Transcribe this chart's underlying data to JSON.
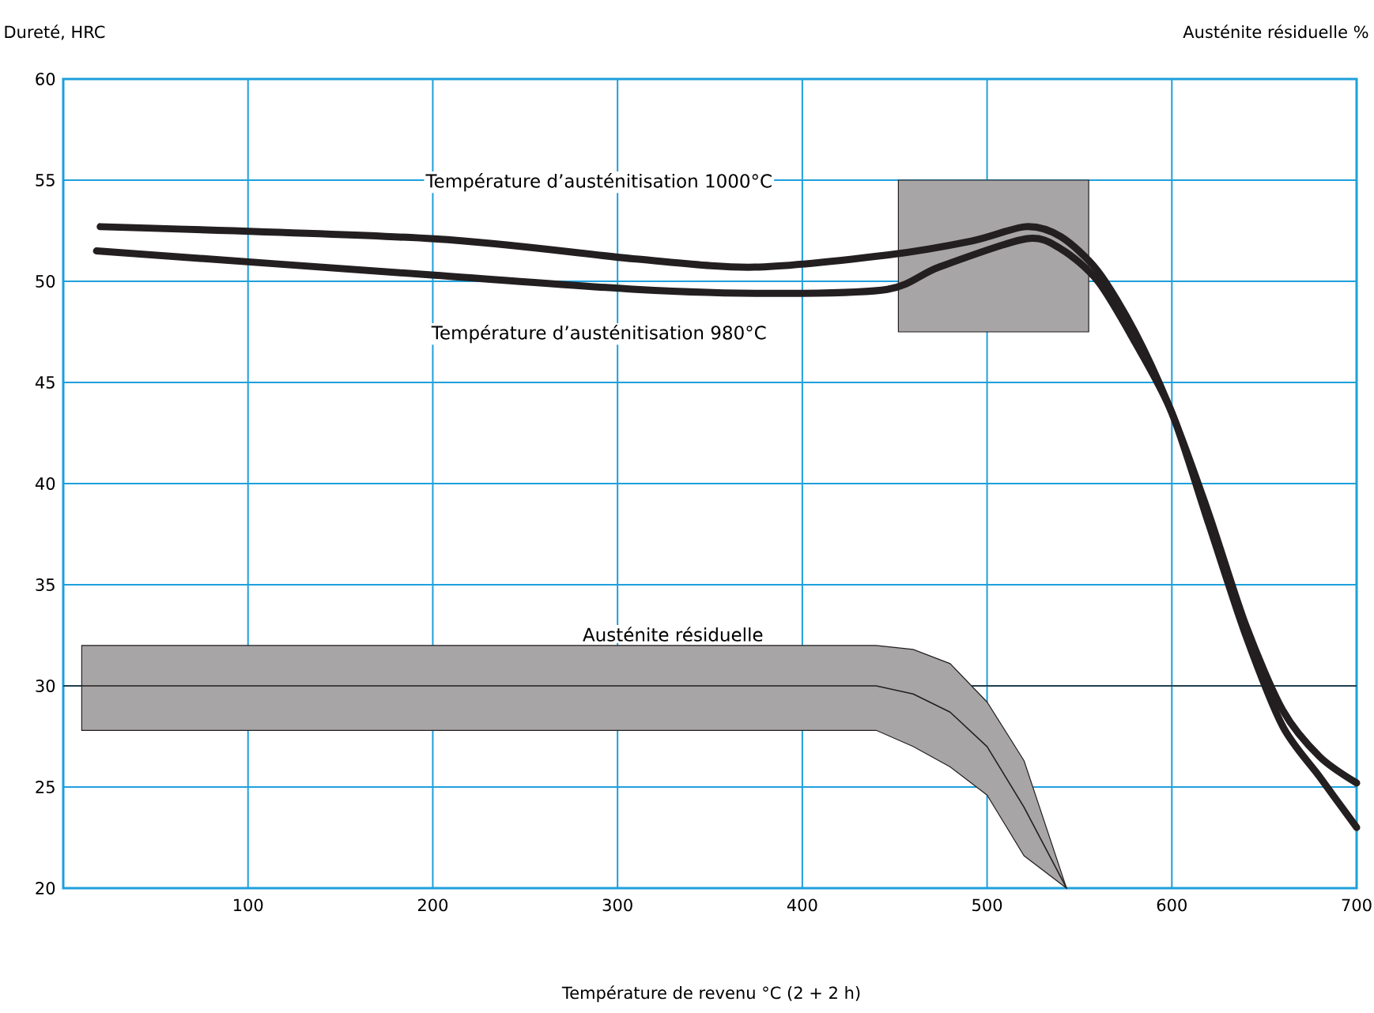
{
  "chart_data": {
    "type": "line",
    "xlabel": "Température de revenu °C (2 + 2 h)",
    "ylabel": "Dureté, HRC",
    "y2label": "Austénite résiduelle %",
    "xlim": [
      0,
      700
    ],
    "xticks": [
      100,
      200,
      300,
      400,
      500,
      600,
      700
    ],
    "ylim": [
      20,
      60
    ],
    "yticks": [
      20,
      25,
      30,
      35,
      40,
      45,
      50,
      55,
      60
    ],
    "grid": true,
    "ref_lines": [
      {
        "axis": "y",
        "value": 30,
        "color": "#231f20"
      }
    ],
    "series": [
      {
        "name": "Température d’austénitisation 1000°C",
        "color": "#231f20",
        "x": [
          20,
          201,
          310,
          374,
          446,
          492,
          521,
          540,
          560,
          580,
          600,
          620,
          640,
          660,
          680,
          700
        ],
        "values": [
          52.7,
          52.1,
          51.1,
          50.7,
          51.3,
          52.0,
          52.7,
          52.2,
          50.5,
          47.5,
          43.5,
          38.5,
          33,
          28.8,
          26.5,
          25.2
        ]
      },
      {
        "name": "Température d’austénitisation 980°C",
        "color": "#231f20",
        "x": [
          18,
          201,
          310,
          383,
          446,
          474,
          521,
          540,
          560,
          580,
          600,
          620,
          640,
          660,
          680,
          700
        ],
        "values": [
          51.5,
          50.3,
          49.6,
          49.4,
          49.6,
          50.7,
          52.1,
          51.6,
          50,
          47,
          43.5,
          38,
          32.5,
          28,
          25.5,
          23
        ]
      },
      {
        "name": "Austénite résiduelle",
        "type": "line",
        "color": "#231f20",
        "x": [
          10,
          440,
          460,
          480,
          500,
          520,
          543
        ],
        "values": [
          30,
          30,
          29.6,
          28.7,
          27.0,
          24.0,
          20
        ],
        "lower": [
          27.8,
          27.8,
          27.0,
          26.0,
          24.6,
          21.6,
          20
        ],
        "upper": [
          32,
          32,
          31.8,
          31.1,
          29.2,
          26.3,
          20
        ]
      },
      {
        "type": "line",
        "color": "#231f20",
        "x": [
          452,
          555
        ],
        "values": [
          null,
          null
        ],
        "lower": [
          47.5,
          47.5
        ],
        "upper": [
          55,
          55
        ]
      }
    ]
  }
}
